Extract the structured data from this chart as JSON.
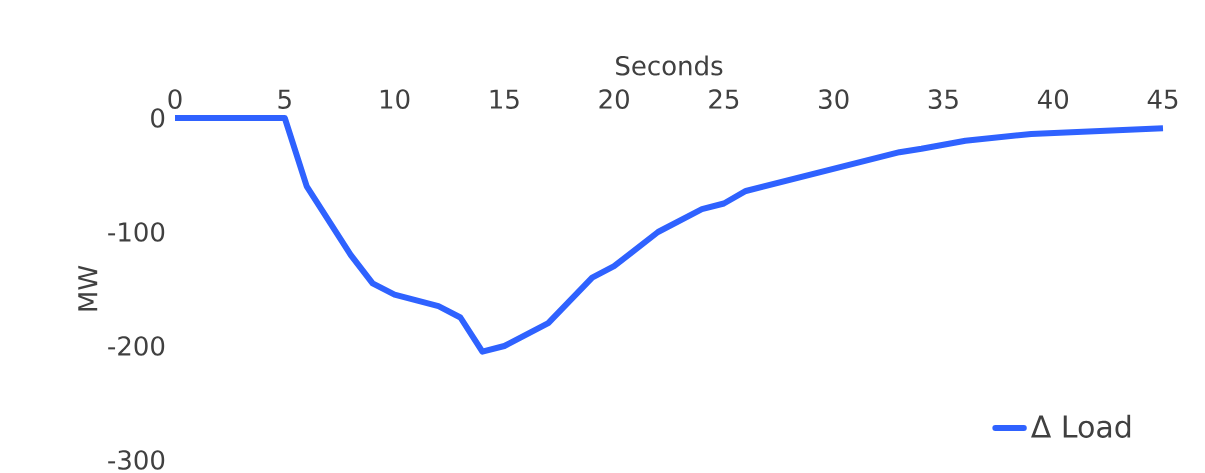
{
  "chart_data": {
    "type": "line",
    "xlabel": "Seconds",
    "ylabel": "MW",
    "x": [
      0,
      5,
      6,
      8,
      9,
      10,
      12,
      13,
      14,
      15,
      17,
      19,
      20,
      22,
      24,
      25,
      26,
      33,
      34,
      36,
      39,
      45
    ],
    "series": [
      {
        "name": "Δ Load",
        "color": "#2f62ff",
        "values": [
          0,
          0,
          -60,
          -120,
          -145,
          -155,
          -165,
          -175,
          -205,
          -200,
          -180,
          -140,
          -130,
          -100,
          -80,
          -75,
          -64,
          -30,
          -27,
          -20,
          -14,
          -9
        ]
      }
    ],
    "xlim": [
      0,
      45
    ],
    "ylim": [
      -300,
      0
    ],
    "xticks": [
      0,
      5,
      10,
      15,
      20,
      25,
      30,
      35,
      40,
      45
    ],
    "yticks": [
      -300,
      -200,
      -100,
      0
    ],
    "legend": "bottom right",
    "marker": "none",
    "line_style": "solid",
    "grid": false
  }
}
